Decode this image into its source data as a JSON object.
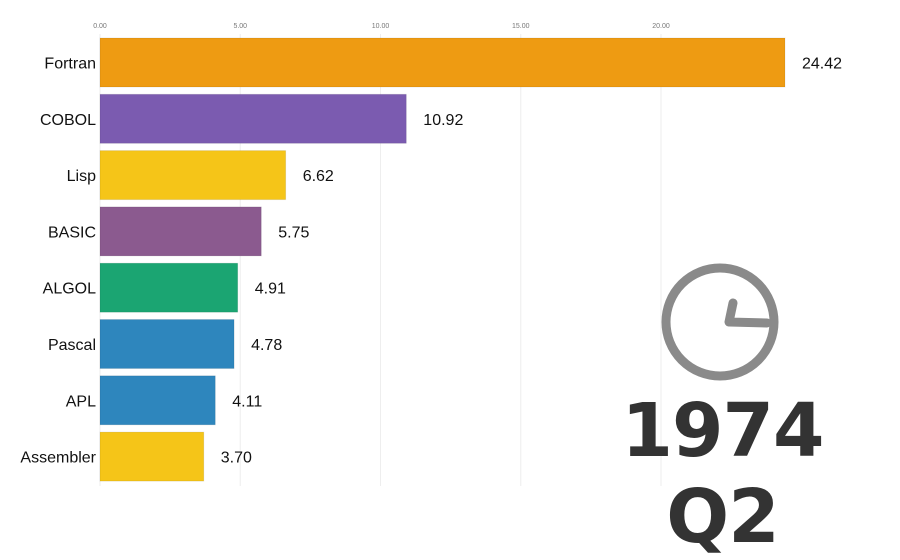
{
  "chart_data": {
    "type": "bar",
    "orientation": "horizontal",
    "categories": [
      "Fortran",
      "COBOL",
      "Lisp",
      "BASIC",
      "ALGOL",
      "Pascal",
      "APL",
      "Assembler"
    ],
    "values": [
      24.42,
      10.92,
      6.62,
      5.75,
      4.91,
      4.78,
      4.11,
      3.7
    ],
    "value_labels": [
      "24.42",
      "10.92",
      "6.62",
      "5.75",
      "4.91",
      "4.78",
      "4.11",
      "3.70"
    ],
    "colors": [
      "#EE9B12",
      "#7B5BB0",
      "#F5C518",
      "#8B5A8F",
      "#1BA572",
      "#2E86BD",
      "#2E86BD",
      "#F5C518"
    ],
    "xticks": [
      0,
      5,
      10,
      15,
      20
    ],
    "xtick_labels": [
      "0.00",
      "5.00",
      "10.00",
      "15.00",
      "20.00"
    ],
    "xlim": [
      0,
      25
    ],
    "grid": true,
    "axis_position": "top"
  },
  "period_label": "1974 Q2",
  "icons": {
    "timer": "clock-icon"
  }
}
